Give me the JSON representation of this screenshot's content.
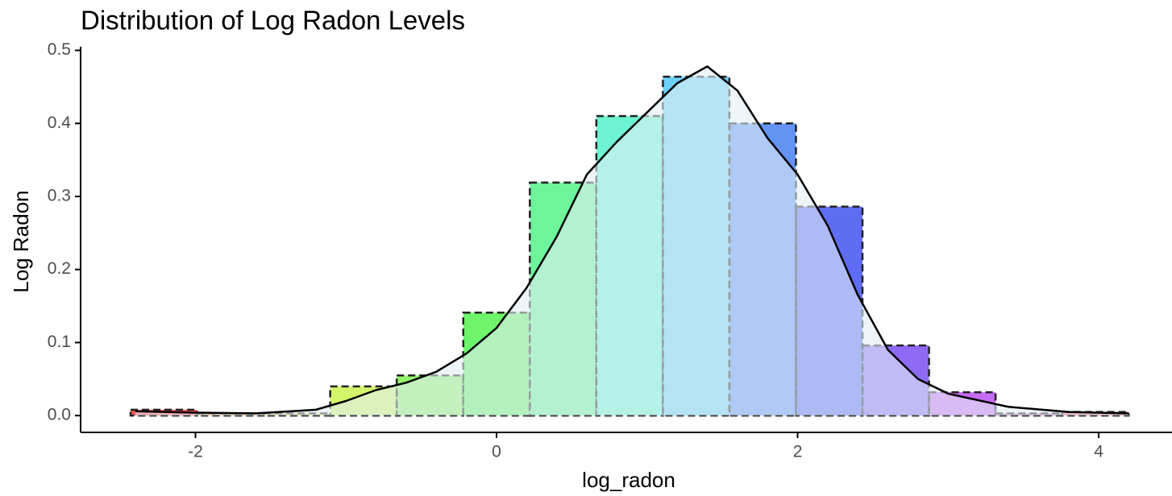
{
  "chart_data": {
    "type": "histogram",
    "title": "Distribution of Log Radon Levels",
    "x_label": "log_radon",
    "y_label": "Log Radon",
    "bins": [
      -2.431,
      -1.989,
      -1.547,
      -1.105,
      -0.663,
      -0.221,
      0.221,
      0.663,
      1.105,
      1.547,
      1.989,
      2.431,
      2.873,
      3.315,
      3.757,
      4.199
    ],
    "values": [
      0.008,
      0.003,
      0.003,
      0.04,
      0.055,
      0.141,
      0.319,
      0.41,
      0.464,
      0.4,
      0.286,
      0.096,
      0.032,
      0.003,
      0.005
    ],
    "colors": [
      "#ff1a1a",
      "#ff8c1a",
      "#f2e61a",
      "#c4f23a",
      "#6ef23a",
      "#3ef23a",
      "#3ef07a",
      "#3ef0c4",
      "#3ec2f6",
      "#2f70f2",
      "#2a3cf0",
      "#6a3af2",
      "#b43af0",
      "#e23ad4",
      "#f23a6e"
    ],
    "density": {
      "x": [
        -2.4,
        -2.0,
        -1.6,
        -1.2,
        -1.0,
        -0.8,
        -0.6,
        -0.4,
        -0.2,
        0,
        0.2,
        0.4,
        0.6,
        0.8,
        1.0,
        1.2,
        1.4,
        1.6,
        1.8,
        2.0,
        2.2,
        2.4,
        2.6,
        2.8,
        3.0,
        3.4,
        3.8,
        4.2
      ],
      "y": [
        0.006,
        0.004,
        0.003,
        0.008,
        0.02,
        0.035,
        0.045,
        0.06,
        0.085,
        0.12,
        0.175,
        0.245,
        0.33,
        0.375,
        0.415,
        0.455,
        0.478,
        0.445,
        0.38,
        0.33,
        0.26,
        0.165,
        0.09,
        0.05,
        0.03,
        0.012,
        0.005,
        0.003
      ],
      "fill": "#e3eef4",
      "color": "#000000"
    },
    "xlim": [
      -2.763,
      4.487
    ],
    "ylim": [
      -0.023,
      0.505
    ],
    "xticks": [
      -2,
      0,
      2,
      4
    ],
    "yticks": [
      {
        "value": 0,
        "label": "0.0"
      },
      0.1,
      0.2,
      0.3,
      0.4,
      0.5
    ]
  }
}
